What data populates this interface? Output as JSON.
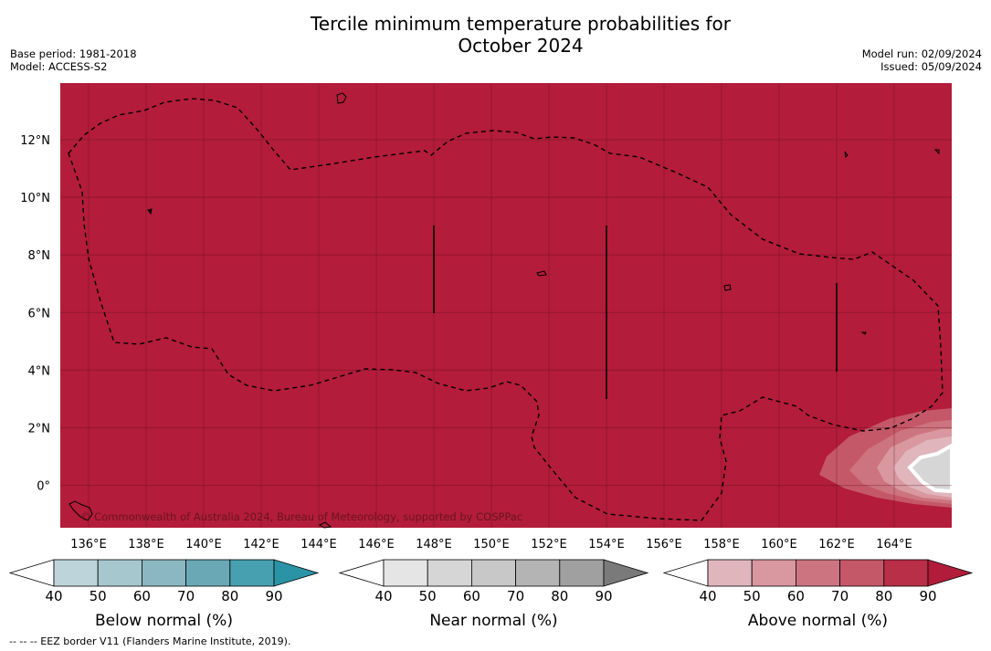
{
  "header": {
    "title_line1": "Tercile minimum temperature probabilities for",
    "title_line2": "October 2024",
    "base_period": "Base period: 1981-2018",
    "model": "Model: ACCESS-S2",
    "model_run": "Model run: 02/09/2024",
    "issued": "Issued: 05/09/2024"
  },
  "map": {
    "background_color": "#b31c3a",
    "lat_labels": [
      "12°N",
      "10°N",
      "8°N",
      "6°N",
      "4°N",
      "2°N",
      "0°"
    ],
    "lon_labels": [
      "136°E",
      "138°E",
      "140°E",
      "142°E",
      "144°E",
      "146°E",
      "148°E",
      "150°E",
      "152°E",
      "154°E",
      "156°E",
      "158°E",
      "160°E",
      "162°E",
      "164°E"
    ],
    "copyright": "© Commonwealth of Australia 2024, Bureau of Meteorology, supported by COSPPac"
  },
  "colorbars": [
    {
      "label": "Below normal (%)",
      "ticks": [
        "40",
        "50",
        "60",
        "70",
        "80",
        "90"
      ],
      "colors": [
        "#ffffff",
        "#bcd4da",
        "#a6c7ce",
        "#8bb7c2",
        "#6aa8b6",
        "#47a0b0",
        "#2b93a6"
      ]
    },
    {
      "label": "Near normal (%)",
      "ticks": [
        "40",
        "50",
        "60",
        "70",
        "80",
        "90"
      ],
      "colors": [
        "#ffffff",
        "#e5e5e5",
        "#d6d6d6",
        "#c8c8c8",
        "#b4b4b4",
        "#a0a0a0",
        "#7a7a7a"
      ]
    },
    {
      "label": "Above normal (%)",
      "ticks": [
        "40",
        "50",
        "60",
        "70",
        "80",
        "90"
      ],
      "colors": [
        "#ffffff",
        "#e0b6bc",
        "#d9979f",
        "#cc7480",
        "#c45869",
        "#b92f48",
        "#b01c3a"
      ]
    }
  ],
  "footnote": "--  --  -- EEZ border V11 (Flanders Marine Institute, 2019)."
}
